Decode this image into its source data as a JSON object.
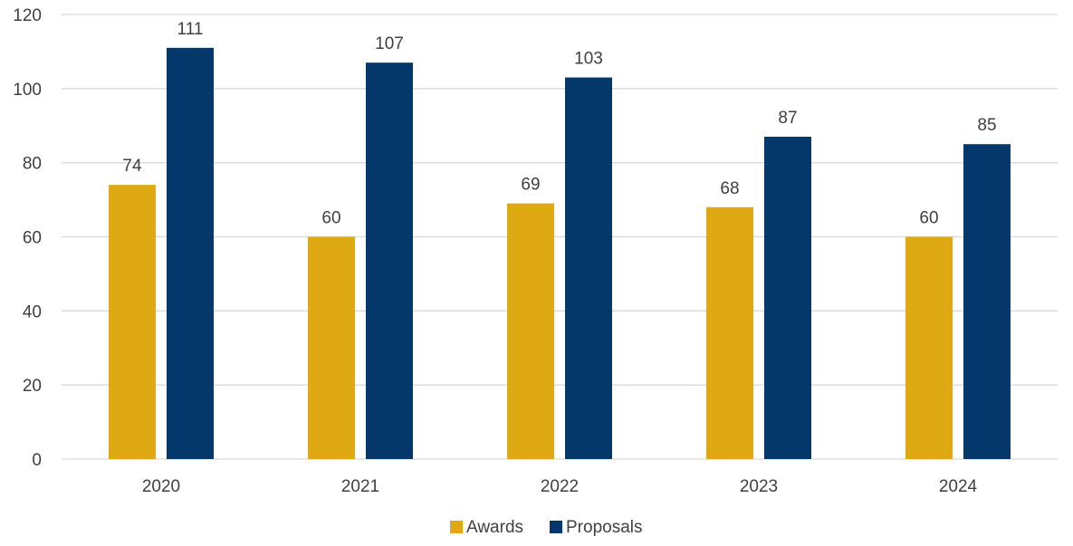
{
  "chart_data": {
    "type": "bar",
    "categories": [
      "2020",
      "2021",
      "2022",
      "2023",
      "2024"
    ],
    "series": [
      {
        "name": "Awards",
        "values": [
          74,
          60,
          69,
          68,
          60
        ],
        "color": "#DEA912"
      },
      {
        "name": "Proposals",
        "values": [
          111,
          107,
          103,
          87,
          85
        ],
        "color": "#04376A"
      }
    ],
    "title": "",
    "xlabel": "",
    "ylabel": "",
    "ylim": [
      0,
      120
    ],
    "yticks": [
      0,
      20,
      40,
      60,
      80,
      100,
      120
    ],
    "grid": true,
    "legend": "bottom-center",
    "data_labels": true
  }
}
